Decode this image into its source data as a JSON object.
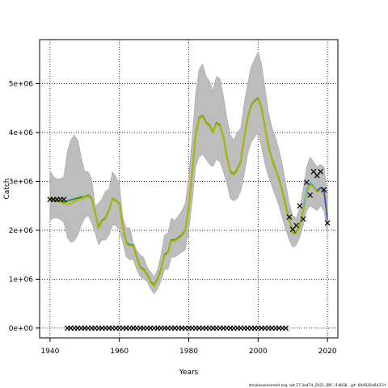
{
  "chart_data": {
    "type": "line",
    "xlabel": "Years",
    "ylabel": "Catch",
    "xlim": [
      1937,
      2023
    ],
    "ylim": [
      -200000,
      5900000
    ],
    "x_ticks": [
      1940,
      1960,
      1980,
      2000,
      2020
    ],
    "x_tick_labels": [
      "1940",
      "1960",
      "1980",
      "2000",
      "2020"
    ],
    "y_ticks": [
      0,
      1000000,
      2000000,
      3000000,
      4000000,
      5000000
    ],
    "y_tick_labels": [
      "0e+00",
      "1e+06",
      "2e+06",
      "3e+06",
      "4e+06",
      "5e+06"
    ],
    "grid": "dotted",
    "footer": "stockassessment.org, wlt.27.3a47d_2021_IBP, r14838 , git: 69d926d0437d",
    "band": {
      "x": [
        1940,
        1941,
        1942,
        1943,
        1944,
        1945,
        1946,
        1947,
        1948,
        1949,
        1950,
        1951,
        1952,
        1953,
        1954,
        1955,
        1956,
        1957,
        1958,
        1959,
        1960,
        1961,
        1962,
        1963,
        1964,
        1965,
        1966,
        1967,
        1968,
        1969,
        1970,
        1971,
        1972,
        1973,
        1974,
        1975,
        1976,
        1977,
        1978,
        1979,
        1980,
        1981,
        1982,
        1983,
        1984,
        1985,
        1986,
        1987,
        1988,
        1989,
        1990,
        1991,
        1992,
        1993,
        1994,
        1995,
        1996,
        1997,
        1998,
        1999,
        2000,
        2001,
        2002,
        2003,
        2004,
        2005,
        2006,
        2007,
        2008,
        2009,
        2010,
        2011,
        2012,
        2013,
        2014,
        2015,
        2016,
        2017,
        2018,
        2019,
        2020
      ],
      "upper": [
        3220000,
        3100000,
        3050000,
        3050000,
        3100000,
        3600000,
        3850000,
        3950000,
        3850000,
        3500000,
        3200000,
        3200000,
        3050000,
        2500000,
        2550000,
        2650000,
        2800000,
        2850000,
        3200000,
        3100000,
        2950000,
        2250000,
        2050000,
        2050000,
        1750000,
        1600000,
        1500000,
        1450000,
        1250000,
        1150000,
        1050000,
        1200000,
        1500000,
        1900000,
        1950000,
        2250000,
        2200000,
        2300000,
        2400000,
        2550000,
        3100000,
        3900000,
        4800000,
        5300000,
        5400000,
        5150000,
        5050000,
        4850000,
        5150000,
        5100000,
        4750000,
        4300000,
        3950000,
        3850000,
        4000000,
        4100000,
        4600000,
        5000000,
        5350000,
        5500000,
        5650000,
        5400000,
        4900000,
        4400000,
        4100000,
        3900000,
        3650000,
        3350000,
        2950000,
        2550000,
        2300000,
        2250000,
        2450000,
        2850000,
        3300000,
        3500000,
        3400000,
        3300000,
        3350000,
        3300000,
        2700000
      ],
      "lower": [
        2200000,
        2250000,
        2250000,
        2220000,
        2150000,
        1850000,
        1750000,
        1780000,
        1900000,
        2100000,
        2250000,
        2300000,
        2150000,
        1950000,
        1700000,
        1800000,
        1800000,
        1900000,
        2100000,
        2100000,
        2000000,
        1750000,
        1450000,
        1400000,
        1400000,
        1200000,
        1050000,
        1000000,
        950000,
        800000,
        700000,
        800000,
        950000,
        1200000,
        1200000,
        1450000,
        1450000,
        1500000,
        1550000,
        1600000,
        2000000,
        2600000,
        3300000,
        3500000,
        3550000,
        3450000,
        3350000,
        3300000,
        3450000,
        3400000,
        3200000,
        2950000,
        2650000,
        2600000,
        2650000,
        2800000,
        3150000,
        3550000,
        3800000,
        3900000,
        4000000,
        3700000,
        3350000,
        3100000,
        2900000,
        2700000,
        2500000,
        2250000,
        2000000,
        1800000,
        1650000,
        1700000,
        1850000,
        2100000,
        2400000,
        2500000,
        2450000,
        2400000,
        2500000,
        2400000,
        1950000
      ]
    },
    "series": [
      {
        "color": "#2e8b57",
        "x": [
          1940,
          1941,
          1942,
          1943,
          1944,
          1945,
          1946,
          1947,
          1948,
          1949,
          1950,
          1951,
          1952,
          1953,
          1954,
          1955,
          1956,
          1957,
          1958,
          1959,
          1960,
          1961,
          1962,
          1963,
          1964,
          1965,
          1966,
          1967,
          1968,
          1969,
          1970,
          1971,
          1972,
          1973,
          1974,
          1975,
          1976,
          1977,
          1978,
          1979,
          1980,
          1981,
          1982,
          1983,
          1984,
          1985,
          1986,
          1987,
          1988,
          1989,
          1990,
          1991,
          1992,
          1993,
          1994,
          1995,
          1996,
          1997,
          1998,
          1999,
          2000,
          2001,
          2002,
          2003,
          2004,
          2005,
          2006,
          2007,
          2008,
          2009,
          2010,
          2011,
          2012,
          2013,
          2014,
          2015,
          2016,
          2017,
          2018,
          2019,
          2020
        ],
        "y": [
          2650000,
          2620000,
          2600000,
          2580000,
          2570000,
          2600000,
          2620000,
          2640000,
          2660000,
          2680000,
          2680000,
          2720000,
          2650000,
          2350000,
          2050000,
          2200000,
          2250000,
          2400000,
          2650000,
          2600000,
          2550000,
          2050000,
          1750000,
          1700000,
          1700000,
          1450000,
          1250000,
          1200000,
          1100000,
          950000,
          880000,
          1000000,
          1200000,
          1500000,
          1550000,
          1800000,
          1800000,
          1850000,
          1900000,
          2000000,
          2450000,
          3200000,
          3950000,
          4300000,
          4350000,
          4200000,
          4150000,
          4000000,
          4200000,
          4150000,
          3900000,
          3500000,
          3200000,
          3150000,
          3250000,
          3400000,
          3900000,
          4300000,
          4550000,
          4650000,
          4700000,
          4500000,
          4100000,
          3700000,
          3450000,
          3250000,
          3050000,
          2800000,
          2500000,
          2200000,
          1950000,
          1950000,
          2100000,
          2400000,
          2800000,
          2950000,
          2900000,
          2800000,
          2850000,
          2800000,
          2300000
        ]
      },
      {
        "color": "#b5b800",
        "x": [
          1940,
          1941,
          1942,
          1943,
          1944,
          1945,
          1946,
          1947,
          1948,
          1949,
          1950,
          1951,
          1952,
          1953,
          1954,
          1955,
          1956,
          1957,
          1958,
          1959,
          1960,
          1961,
          1962,
          1963,
          1964,
          1965,
          1966,
          1967,
          1968,
          1969,
          1970,
          1971,
          1972,
          1973,
          1974,
          1975,
          1976,
          1977,
          1978,
          1979,
          1980,
          1981,
          1982,
          1983,
          1984,
          1985,
          1986,
          1987,
          1988,
          1989,
          1990,
          1991,
          1992,
          1993,
          1994,
          1995,
          1996,
          1997,
          1998,
          1999,
          2000,
          2001,
          2002,
          2003,
          2004,
          2005,
          2006,
          2007,
          2008,
          2009,
          2010,
          2011,
          2012,
          2013,
          2014,
          2015,
          2016,
          2017,
          2018,
          2019,
          2020
        ],
        "y": [
          2680000,
          2650000,
          2620000,
          2580000,
          2540000,
          2530000,
          2550000,
          2580000,
          2620000,
          2650000,
          2670000,
          2700000,
          2640000,
          2330000,
          2030000,
          2180000,
          2230000,
          2380000,
          2640000,
          2590000,
          2540000,
          2030000,
          1730000,
          1680000,
          1680000,
          1430000,
          1230000,
          1180000,
          1080000,
          930000,
          860000,
          980000,
          1180000,
          1480000,
          1530000,
          1780000,
          1780000,
          1830000,
          1880000,
          1980000,
          2430000,
          3180000,
          3930000,
          4280000,
          4330000,
          4180000,
          4130000,
          3980000,
          4180000,
          4130000,
          3880000,
          3480000,
          3180000,
          3130000,
          3230000,
          3380000,
          3880000,
          4280000,
          4530000,
          4630000,
          4680000,
          4480000,
          4080000,
          3680000,
          3430000,
          3230000,
          3030000,
          2780000,
          2480000,
          2180000,
          1930000,
          1930000,
          2080000,
          2380000,
          2780000,
          2930000,
          2880000,
          2780000,
          2830000,
          2780000,
          2280000
        ]
      },
      {
        "color": "#5bb8e0",
        "x": [
          2013,
          2014,
          2015,
          2016,
          2017,
          2018,
          2019,
          2020
        ],
        "y": [
          2450000,
          2850000,
          2980000,
          2920000,
          2830000,
          2860000,
          2800000,
          2250000
        ]
      },
      {
        "color": "#3a3fd0",
        "x": [
          2017,
          2018,
          2019,
          2020
        ],
        "y": [
          2800000,
          2880000,
          2820000,
          2200000
        ]
      }
    ],
    "observed": {
      "x": [
        1940,
        1941,
        1942,
        1943,
        1944,
        1945,
        1946,
        1947,
        1948,
        1949,
        1950,
        1951,
        1952,
        1953,
        1954,
        1955,
        1956,
        1957,
        1958,
        1959,
        1960,
        1961,
        1962,
        1963,
        1964,
        1965,
        1966,
        1967,
        1968,
        1969,
        1970,
        1971,
        1972,
        1973,
        1974,
        1975,
        1976,
        1977,
        1978,
        1979,
        1980,
        1981,
        1982,
        1983,
        1984,
        1985,
        1986,
        1987,
        1988,
        1989,
        1990,
        1991,
        1992,
        1993,
        1994,
        1995,
        1996,
        1997,
        1998,
        1999,
        2000,
        2001,
        2002,
        2003,
        2004,
        2005,
        2006,
        2007,
        2008,
        2009,
        2010,
        2011,
        2012,
        2013,
        2014,
        2015,
        2016,
        2017,
        2018,
        2019,
        2020
      ],
      "y": [
        2630000,
        2630000,
        2630000,
        2630000,
        2630000,
        0,
        0,
        0,
        0,
        0,
        0,
        0,
        0,
        0,
        0,
        0,
        0,
        0,
        0,
        0,
        0,
        0,
        0,
        0,
        0,
        0,
        0,
        0,
        0,
        0,
        0,
        0,
        0,
        0,
        0,
        0,
        0,
        0,
        0,
        0,
        0,
        0,
        0,
        0,
        0,
        0,
        0,
        0,
        0,
        0,
        0,
        0,
        0,
        0,
        0,
        0,
        0,
        0,
        0,
        0,
        0,
        0,
        0,
        0,
        0,
        0,
        0,
        0,
        0,
        2270000,
        2020000,
        2100000,
        2500000,
        2230000,
        2980000,
        2720000,
        3200000,
        3120000,
        3200000,
        2830000,
        2150000
      ]
    }
  }
}
